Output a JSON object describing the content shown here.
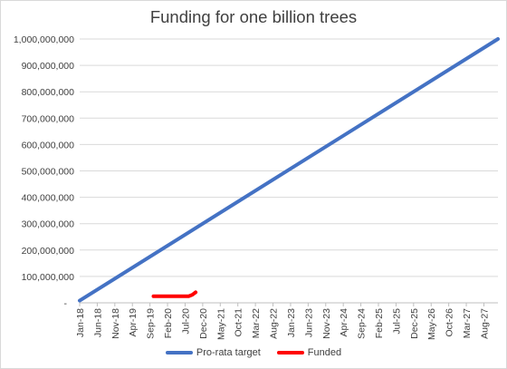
{
  "chart_data": {
    "type": "line",
    "title": "Funding for one billion trees",
    "xlabel": "",
    "ylabel": "",
    "x_tick_labels": [
      "Jan-18",
      "Jun-18",
      "Nov-18",
      "Apr-19",
      "Sep-19",
      "Feb-20",
      "Jul-20",
      "Dec-20",
      "May-21",
      "Oct-21",
      "Mar-22",
      "Aug-22",
      "Jan-23",
      "Jun-23",
      "Nov-23",
      "Apr-24",
      "Sep-24",
      "Feb-25",
      "Jul-25",
      "Dec-25",
      "May-26",
      "Oct-26",
      "Mar-27",
      "Aug-27"
    ],
    "y_tick_labels": [
      "-",
      "100,000,000",
      "200,000,000",
      "300,000,000",
      "400,000,000",
      "500,000,000",
      "600,000,000",
      "700,000,000",
      "800,000,000",
      "900,000,000",
      "1,000,000,000"
    ],
    "xlim": [
      "Jan-18",
      "Dec-27"
    ],
    "ylim": [
      0,
      1000000000
    ],
    "grid": "horizontal",
    "legend_position": "bottom",
    "series": [
      {
        "name": "Pro-rata target",
        "color": "#4472C4",
        "x": [
          "Jan-18",
          "Dec-27"
        ],
        "values": [
          8333333,
          1000000000
        ]
      },
      {
        "name": "Funded",
        "color": "#FF0000",
        "x": [
          "Oct-19",
          "Nov-19",
          "Dec-19",
          "Jan-20",
          "Feb-20",
          "Mar-20",
          "Apr-20",
          "May-20",
          "Jun-20",
          "Jul-20",
          "Aug-20",
          "Sep-20",
          "Oct-20"
        ],
        "values": [
          25000000,
          25000000,
          25000000,
          25000000,
          25000000,
          25000000,
          25000000,
          25000000,
          25000000,
          25000000,
          25000000,
          30000000,
          40000000
        ]
      }
    ]
  }
}
